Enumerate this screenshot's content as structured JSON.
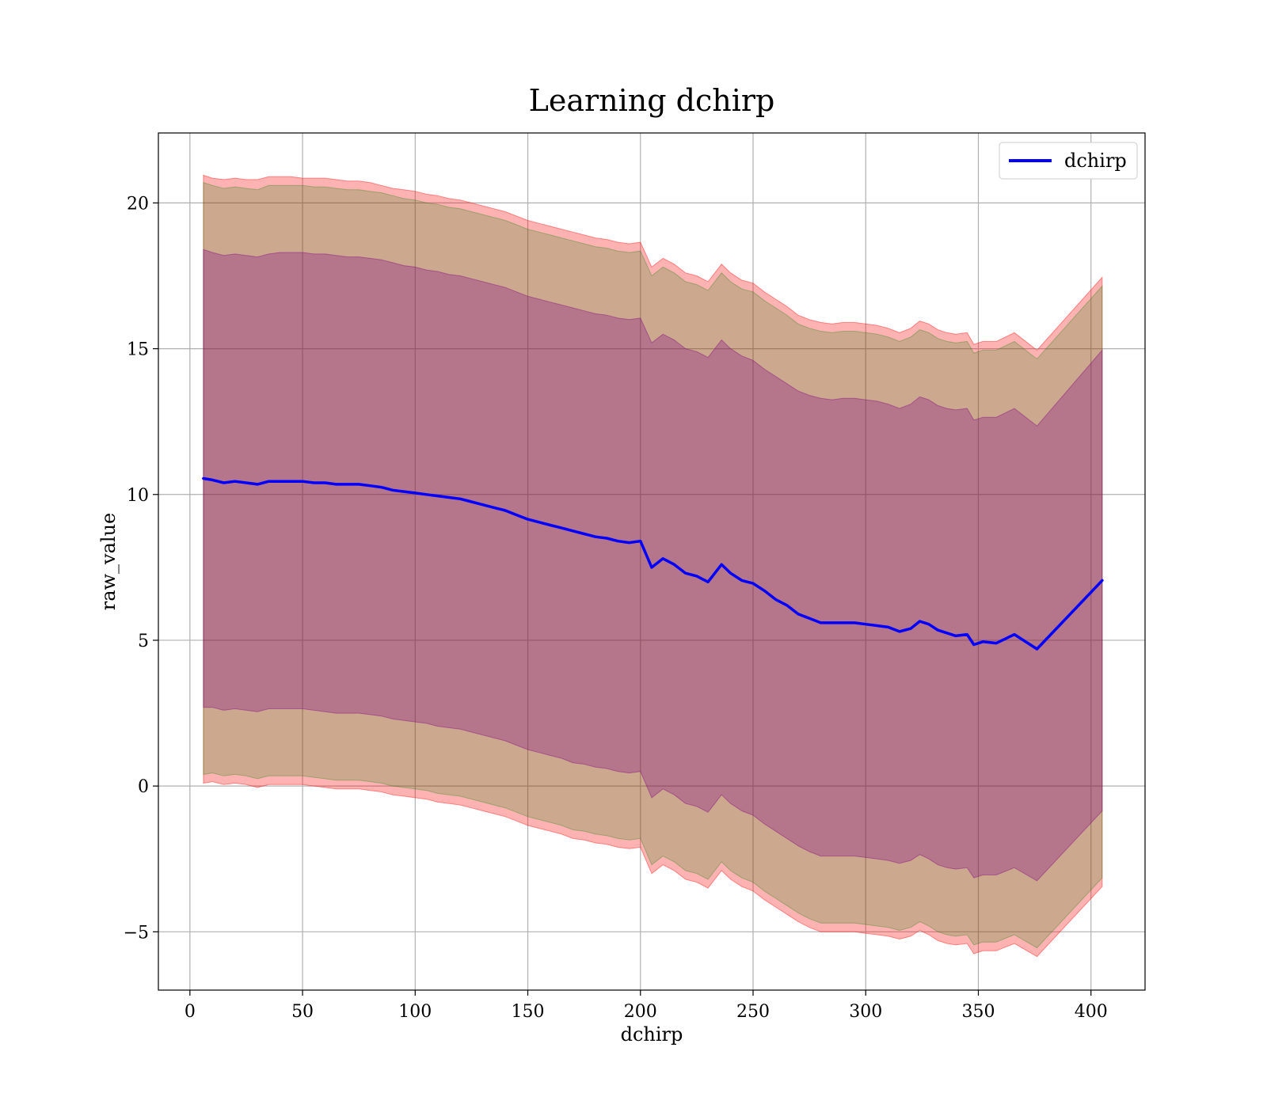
{
  "chart_data": {
    "type": "line",
    "title": "Learning dchirp",
    "xlabel": "dchirp",
    "ylabel": "raw_value",
    "xlim": [
      -14,
      424
    ],
    "ylim": [
      -7,
      22.4
    ],
    "x_ticks": [
      0,
      50,
      100,
      150,
      200,
      250,
      300,
      350,
      400
    ],
    "x_tick_labels": [
      "0",
      "50",
      "100",
      "150",
      "200",
      "250",
      "300",
      "350",
      "400"
    ],
    "y_ticks": [
      -5,
      0,
      5,
      10,
      15,
      20
    ],
    "y_tick_labels": [
      "−5",
      "0",
      "5",
      "10",
      "15",
      "20"
    ],
    "grid": true,
    "legend_position": "upper right",
    "x": [
      6,
      10,
      15,
      20,
      25,
      30,
      35,
      40,
      45,
      50,
      55,
      60,
      65,
      70,
      75,
      80,
      85,
      90,
      95,
      100,
      105,
      110,
      115,
      120,
      125,
      130,
      135,
      140,
      145,
      150,
      155,
      160,
      165,
      170,
      175,
      180,
      185,
      190,
      195,
      200,
      205,
      210,
      215,
      220,
      225,
      230,
      236,
      240,
      245,
      250,
      255,
      260,
      265,
      270,
      275,
      280,
      285,
      290,
      295,
      300,
      305,
      310,
      315,
      320,
      324,
      328,
      332,
      336,
      340,
      345,
      348,
      352,
      358,
      366,
      376,
      405
    ],
    "series": [
      {
        "name": "dchirp",
        "color": "#0000ff",
        "values": [
          10.55,
          10.5,
          10.4,
          10.45,
          10.4,
          10.35,
          10.45,
          10.45,
          10.45,
          10.45,
          10.4,
          10.4,
          10.35,
          10.35,
          10.35,
          10.3,
          10.25,
          10.15,
          10.1,
          10.05,
          10.0,
          9.95,
          9.9,
          9.85,
          9.75,
          9.65,
          9.55,
          9.45,
          9.3,
          9.15,
          9.05,
          8.95,
          8.85,
          8.75,
          8.65,
          8.55,
          8.5,
          8.4,
          8.35,
          8.4,
          7.5,
          7.8,
          7.6,
          7.3,
          7.2,
          7.0,
          7.6,
          7.3,
          7.05,
          6.95,
          6.7,
          6.4,
          6.2,
          5.9,
          5.75,
          5.6,
          5.6,
          5.6,
          5.6,
          5.55,
          5.5,
          5.45,
          5.3,
          5.4,
          5.65,
          5.55,
          5.35,
          5.25,
          5.15,
          5.2,
          4.85,
          4.95,
          4.9,
          5.2,
          4.7,
          7.05
        ]
      }
    ],
    "bands": [
      {
        "color": "#ff0000",
        "opacity": 0.3,
        "upper": [
          20.95,
          20.85,
          20.8,
          20.85,
          20.8,
          20.8,
          20.9,
          20.9,
          20.9,
          20.85,
          20.85,
          20.85,
          20.8,
          20.75,
          20.75,
          20.7,
          20.6,
          20.5,
          20.45,
          20.4,
          20.3,
          20.25,
          20.15,
          20.1,
          20.0,
          19.9,
          19.8,
          19.7,
          19.55,
          19.4,
          19.3,
          19.2,
          19.1,
          19.0,
          18.9,
          18.8,
          18.75,
          18.65,
          18.6,
          18.65,
          17.8,
          18.1,
          17.9,
          17.6,
          17.5,
          17.3,
          17.9,
          17.6,
          17.35,
          17.25,
          16.95,
          16.7,
          16.45,
          16.15,
          16.0,
          15.9,
          15.85,
          15.9,
          15.9,
          15.85,
          15.8,
          15.7,
          15.55,
          15.7,
          15.95,
          15.85,
          15.65,
          15.55,
          15.5,
          15.55,
          15.15,
          15.25,
          15.25,
          15.55,
          14.95,
          17.45
        ],
        "lower": [
          0.1,
          0.15,
          0.05,
          0.1,
          0.05,
          -0.05,
          0.05,
          0.05,
          0.05,
          0.05,
          0.0,
          -0.05,
          -0.1,
          -0.1,
          -0.1,
          -0.15,
          -0.2,
          -0.3,
          -0.35,
          -0.4,
          -0.45,
          -0.55,
          -0.6,
          -0.65,
          -0.75,
          -0.85,
          -0.95,
          -1.05,
          -1.2,
          -1.35,
          -1.45,
          -1.55,
          -1.65,
          -1.8,
          -1.85,
          -1.95,
          -2.0,
          -2.1,
          -2.15,
          -2.1,
          -3.0,
          -2.7,
          -2.9,
          -3.2,
          -3.3,
          -3.5,
          -2.9,
          -3.2,
          -3.45,
          -3.6,
          -3.9,
          -4.15,
          -4.4,
          -4.65,
          -4.85,
          -5.0,
          -5.0,
          -5.0,
          -5.0,
          -5.05,
          -5.1,
          -5.15,
          -5.25,
          -5.15,
          -4.95,
          -5.1,
          -5.3,
          -5.4,
          -5.45,
          -5.4,
          -5.75,
          -5.65,
          -5.65,
          -5.4,
          -5.85,
          -3.45
        ]
      },
      {
        "color": "#008000",
        "opacity": 0.2,
        "upper": [
          20.7,
          20.6,
          20.5,
          20.55,
          20.5,
          20.45,
          20.6,
          20.6,
          20.6,
          20.6,
          20.55,
          20.55,
          20.5,
          20.45,
          20.45,
          20.4,
          20.35,
          20.25,
          20.15,
          20.1,
          20.0,
          19.95,
          19.85,
          19.8,
          19.7,
          19.6,
          19.5,
          19.4,
          19.25,
          19.1,
          19.0,
          18.9,
          18.8,
          18.7,
          18.6,
          18.5,
          18.45,
          18.35,
          18.3,
          18.35,
          17.5,
          17.8,
          17.6,
          17.3,
          17.2,
          17.0,
          17.6,
          17.3,
          17.05,
          16.95,
          16.65,
          16.4,
          16.15,
          15.85,
          15.7,
          15.6,
          15.55,
          15.6,
          15.6,
          15.55,
          15.5,
          15.4,
          15.25,
          15.4,
          15.65,
          15.55,
          15.35,
          15.25,
          15.2,
          15.25,
          14.85,
          14.95,
          14.95,
          15.25,
          14.65,
          17.15
        ],
        "lower": [
          0.4,
          0.45,
          0.35,
          0.4,
          0.35,
          0.25,
          0.35,
          0.35,
          0.35,
          0.35,
          0.3,
          0.25,
          0.2,
          0.2,
          0.2,
          0.15,
          0.1,
          0.0,
          -0.05,
          -0.1,
          -0.15,
          -0.25,
          -0.3,
          -0.35,
          -0.45,
          -0.55,
          -0.65,
          -0.75,
          -0.9,
          -1.05,
          -1.15,
          -1.25,
          -1.35,
          -1.5,
          -1.55,
          -1.65,
          -1.7,
          -1.8,
          -1.85,
          -1.8,
          -2.7,
          -2.4,
          -2.6,
          -2.9,
          -3.0,
          -3.2,
          -2.6,
          -2.9,
          -3.15,
          -3.3,
          -3.6,
          -3.85,
          -4.1,
          -4.35,
          -4.55,
          -4.7,
          -4.7,
          -4.7,
          -4.7,
          -4.75,
          -4.8,
          -4.85,
          -4.95,
          -4.85,
          -4.65,
          -4.8,
          -5.0,
          -5.1,
          -5.15,
          -5.1,
          -5.45,
          -5.35,
          -5.35,
          -5.1,
          -5.55,
          -3.15
        ]
      },
      {
        "color": "#800080",
        "opacity": 0.3,
        "upper": [
          18.4,
          18.3,
          18.2,
          18.25,
          18.2,
          18.15,
          18.25,
          18.3,
          18.3,
          18.3,
          18.25,
          18.25,
          18.2,
          18.15,
          18.15,
          18.1,
          18.05,
          17.95,
          17.85,
          17.8,
          17.7,
          17.65,
          17.55,
          17.5,
          17.4,
          17.3,
          17.2,
          17.1,
          16.95,
          16.8,
          16.7,
          16.6,
          16.5,
          16.4,
          16.3,
          16.2,
          16.15,
          16.05,
          16.0,
          16.05,
          15.2,
          15.5,
          15.3,
          15.0,
          14.9,
          14.7,
          15.3,
          15.0,
          14.75,
          14.6,
          14.3,
          14.05,
          13.8,
          13.55,
          13.4,
          13.3,
          13.25,
          13.3,
          13.3,
          13.25,
          13.2,
          13.1,
          12.95,
          13.1,
          13.35,
          13.25,
          13.05,
          12.95,
          12.9,
          12.95,
          12.55,
          12.65,
          12.65,
          12.95,
          12.35,
          14.95
        ],
        "lower": [
          2.7,
          2.7,
          2.6,
          2.65,
          2.6,
          2.55,
          2.65,
          2.65,
          2.65,
          2.65,
          2.6,
          2.55,
          2.5,
          2.5,
          2.5,
          2.45,
          2.4,
          2.3,
          2.25,
          2.2,
          2.15,
          2.05,
          2.0,
          1.95,
          1.85,
          1.75,
          1.65,
          1.55,
          1.4,
          1.25,
          1.15,
          1.05,
          0.95,
          0.8,
          0.75,
          0.65,
          0.6,
          0.5,
          0.45,
          0.5,
          -0.4,
          -0.1,
          -0.3,
          -0.6,
          -0.7,
          -0.9,
          -0.3,
          -0.6,
          -0.85,
          -1.0,
          -1.3,
          -1.55,
          -1.8,
          -2.05,
          -2.25,
          -2.4,
          -2.4,
          -2.4,
          -2.4,
          -2.45,
          -2.5,
          -2.55,
          -2.65,
          -2.55,
          -2.35,
          -2.5,
          -2.7,
          -2.8,
          -2.85,
          -2.8,
          -3.15,
          -3.05,
          -3.05,
          -2.8,
          -3.25,
          -0.85
        ]
      }
    ]
  }
}
